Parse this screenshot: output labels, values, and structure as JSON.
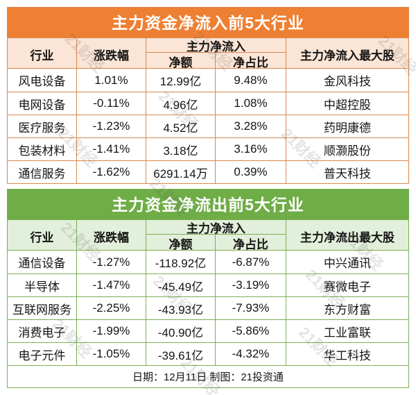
{
  "colors": {
    "inflow_banner": "#EE8033",
    "inflow_header_bg": "#FBE5D6",
    "inflow_border": "#D8864C",
    "outflow_banner": "#6FAD47",
    "outflow_header_bg": "#E2EFDA",
    "outflow_border": "#79AF55"
  },
  "watermark": {
    "text": "21财经"
  },
  "footer": {
    "text": "日期：12月11日 制图：21投资通"
  },
  "chart_data": [
    {
      "type": "table",
      "title": "主力资金净流入前5大行业",
      "columns": [
        "行业",
        "涨跌幅",
        "净额",
        "净占比",
        "主力净流入最大股"
      ],
      "column_group": {
        "label": "主力净流入",
        "spans": [
          "净额",
          "净占比"
        ]
      },
      "rows": [
        [
          "风电设备",
          "1.01%",
          "12.99亿",
          "9.48%",
          "金风科技"
        ],
        [
          "电网设备",
          "-0.11%",
          "4.96亿",
          "1.08%",
          "中超控股"
        ],
        [
          "医疗服务",
          "-1.23%",
          "4.52亿",
          "3.28%",
          "药明康德"
        ],
        [
          "包装材料",
          "-1.41%",
          "3.18亿",
          "3.16%",
          "顺灏股份"
        ],
        [
          "通信服务",
          "-1.62%",
          "6291.14万",
          "0.39%",
          "普天科技"
        ]
      ]
    },
    {
      "type": "table",
      "title": "主力资金净流出前5大行业",
      "columns": [
        "行业",
        "涨跌幅",
        "净额",
        "净占比",
        "主力净流出最大股"
      ],
      "column_group": {
        "label": "主力净流入",
        "spans": [
          "净额",
          "净占比"
        ]
      },
      "rows": [
        [
          "通信设备",
          "-1.27%",
          "-118.92亿",
          "-6.87%",
          "中兴通讯"
        ],
        [
          "半导体",
          "-1.47%",
          "-45.49亿",
          "-3.19%",
          "赛微电子"
        ],
        [
          "互联网服务",
          "-2.25%",
          "-43.93亿",
          "-7.93%",
          "东方财富"
        ],
        [
          "消费电子",
          "-1.99%",
          "-40.90亿",
          "-5.86%",
          "工业富联"
        ],
        [
          "电子元件",
          "-1.05%",
          "-39.61亿",
          "-4.32%",
          "华工科技"
        ]
      ]
    }
  ]
}
